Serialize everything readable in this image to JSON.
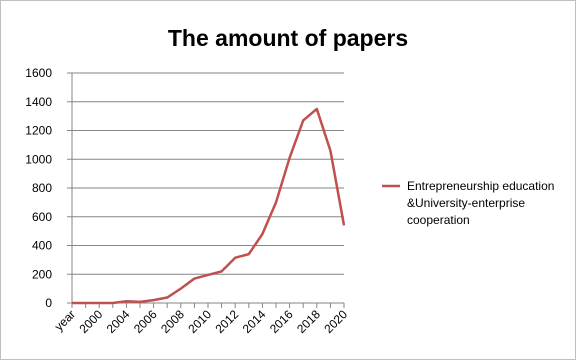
{
  "chart_data": {
    "type": "line",
    "title": "The amount of papers",
    "categories": [
      "year",
      null,
      "2000",
      null,
      "2004",
      null,
      "2006",
      null,
      "2008",
      null,
      "2010",
      null,
      "2012",
      null,
      "2014",
      null,
      "2016",
      null,
      "2018",
      null,
      "2020"
    ],
    "series": [
      {
        "name": "Entrepreneurship education &University-enterprise cooperation",
        "color": "#c0504d",
        "values": [
          0,
          0,
          0,
          0,
          12,
          8,
          20,
          38,
          100,
          170,
          195,
          220,
          315,
          340,
          480,
          700,
          1010,
          1270,
          1350,
          1060,
          540
        ]
      }
    ],
    "ylim": [
      0,
      1600
    ],
    "yticks": [
      0,
      200,
      400,
      600,
      800,
      1000,
      1200,
      1400,
      1600
    ],
    "grid": true,
    "legend": "right"
  }
}
